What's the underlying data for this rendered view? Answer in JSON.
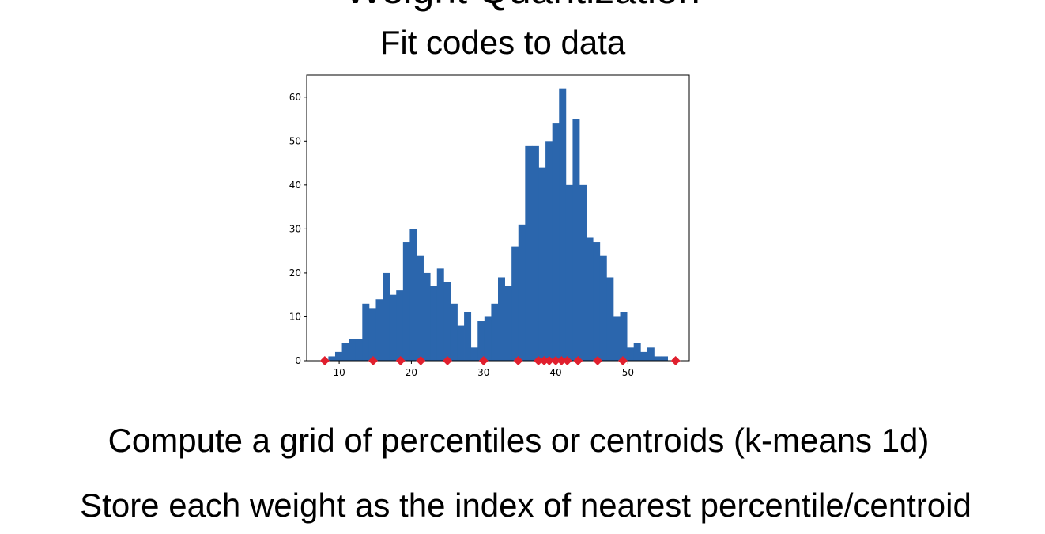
{
  "slide": {
    "title_partial": "Weight Quantization",
    "subtitle": "Fit codes to data",
    "line1": "Compute a grid of percentiles or centroids (k-means 1d)",
    "line2": "Store each weight as the index of nearest percentile/centroid"
  },
  "chart_data": {
    "type": "bar",
    "title": "",
    "xlabel": "",
    "ylabel": "",
    "xlim": [
      5.5,
      58.5
    ],
    "ylim": [
      0,
      65
    ],
    "xticks": [
      10,
      20,
      30,
      40,
      50
    ],
    "yticks": [
      0,
      10,
      20,
      30,
      40,
      50,
      60
    ],
    "grid": false,
    "bins": {
      "start": 8.5,
      "width": 0.94,
      "counts": [
        1,
        2,
        4,
        5,
        5,
        13,
        12,
        14,
        20,
        15,
        16,
        27,
        30,
        24,
        20,
        17,
        21,
        18,
        13,
        8,
        11,
        3,
        9,
        10,
        13,
        19,
        17,
        26,
        31,
        49,
        49,
        44,
        50,
        54,
        62,
        40,
        55,
        40,
        28,
        27,
        24,
        19,
        10,
        11,
        3,
        4,
        2,
        3,
        1,
        1
      ]
    },
    "centroids": [
      8,
      14.7,
      18.5,
      21.3,
      25,
      30,
      34.8,
      37.6,
      38.4,
      39.1,
      40,
      40.8,
      41.6,
      43.1,
      45.8,
      49.3,
      56.6
    ],
    "colors": {
      "bar": "#2b66ad",
      "centroid": "#e0202e",
      "axis": "#000000"
    }
  }
}
